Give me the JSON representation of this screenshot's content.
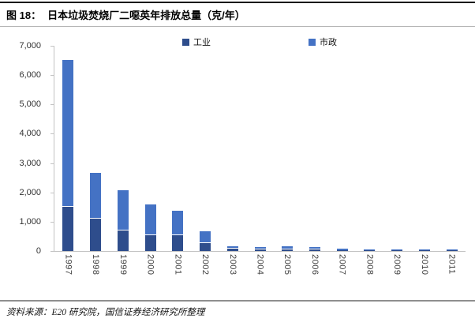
{
  "header": {
    "fig_label": "图 18：",
    "title": "日本垃圾焚烧厂二噁英年排放总量（克/年）"
  },
  "footer": {
    "source": "资料来源：E20 研究院，国信证券经济研究所整理"
  },
  "colors": {
    "industry": "#2e4d8c",
    "municipal": "#4472c4",
    "axis_line": "#c3c3c3",
    "top_rule": "#141414",
    "divider": "#b5b5b5",
    "footer_rule": "#8f8f8f"
  },
  "chart_data": {
    "type": "bar",
    "stacked": true,
    "title": "日本垃圾焚烧厂二噁英年排放总量（克/年）",
    "unit": "克/年",
    "categories": [
      "1997",
      "1998",
      "1999",
      "2000",
      "2001",
      "2002",
      "2003",
      "2004",
      "2005",
      "2006",
      "2007",
      "2008",
      "2009",
      "2010",
      "2011"
    ],
    "series": [
      {
        "name": "工业",
        "color": "#2e4d8c",
        "values": [
          1500,
          1100,
          690,
          550,
          530,
          265,
          75,
          62,
          60,
          43,
          38,
          28,
          20,
          17,
          15
        ]
      },
      {
        "name": "市政",
        "color": "#4472c4",
        "values": [
          5000,
          1550,
          1350,
          1020,
          810,
          370,
          71,
          59,
          64,
          52,
          52,
          38,
          31,
          33,
          31
        ]
      }
    ],
    "totals": [
      6500,
      2650,
      2040,
      1570,
      1340,
      635,
      146,
      121,
      124,
      95,
      90,
      66,
      51,
      50,
      46
    ],
    "ylim": [
      0,
      7000
    ],
    "yticks": [
      "7,000",
      "6,000",
      "5,000",
      "4,000",
      "3,000",
      "2,000",
      "1,000",
      "0"
    ],
    "grid": false,
    "legend_position": "top"
  }
}
